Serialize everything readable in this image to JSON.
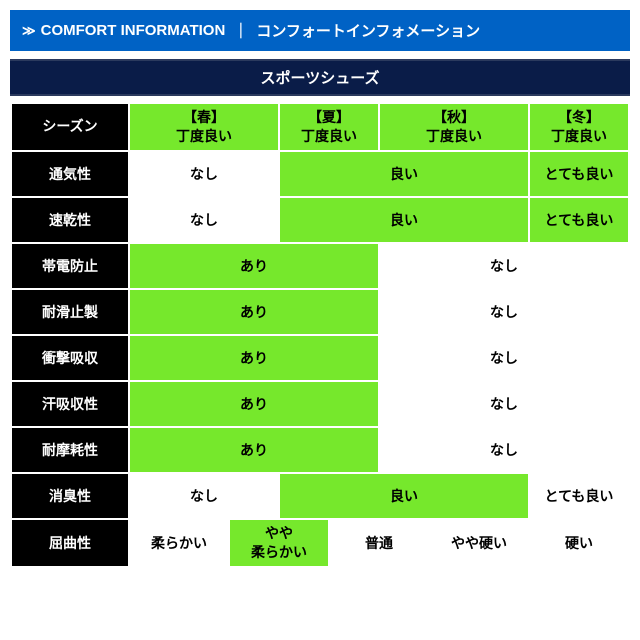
{
  "header": {
    "title_en": "COMFORT INFORMATION",
    "sep": "｜",
    "title_ja": "コンフォートインフォメーション"
  },
  "subtitle": "スポーツシューズ",
  "rows": {
    "season": {
      "label": "シーズン",
      "spring": "【春】\n丁度良い",
      "summer": "【夏】\n丁度良い",
      "autumn": "【秋】\n丁度良い",
      "winter": "【冬】\n丁度良い"
    },
    "breath": {
      "label": "通気性",
      "a": "なし",
      "b": "良い",
      "c": "とても良い"
    },
    "quickdry": {
      "label": "速乾性",
      "a": "なし",
      "b": "良い",
      "c": "とても良い"
    },
    "antistatic": {
      "label": "帯電防止",
      "a": "あり",
      "b": "なし"
    },
    "antislip": {
      "label": "耐滑止製",
      "a": "あり",
      "b": "なし"
    },
    "shock": {
      "label": "衝撃吸収",
      "a": "あり",
      "b": "なし"
    },
    "sweat": {
      "label": "汗吸収性",
      "a": "あり",
      "b": "なし"
    },
    "wear": {
      "label": "耐摩耗性",
      "a": "あり",
      "b": "なし"
    },
    "odor": {
      "label": "消臭性",
      "a": "なし",
      "b": "良い",
      "c": "とても良い"
    },
    "flex": {
      "label": "屈曲性",
      "v1": "柔らかい",
      "v2": "やや\n柔らかい",
      "v3": "普通",
      "v4": "やや硬い",
      "v5": "硬い"
    }
  },
  "colors": {
    "header_bg": "#0062c5",
    "sub_bg": "#0a1c48",
    "rowhead_bg": "#000000",
    "highlight": "#76e82c",
    "cell_bg": "#ffffff",
    "border": "#ffffff"
  }
}
